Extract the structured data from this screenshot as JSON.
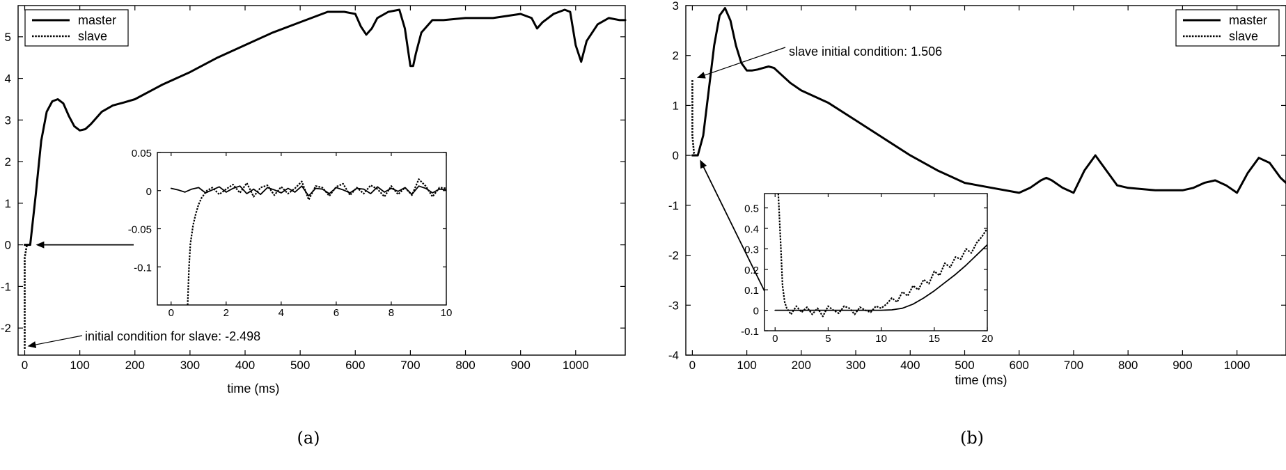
{
  "chart_data": [
    {
      "id": "a",
      "type": "line",
      "caption": "(a)",
      "xlabel": "time (ms)",
      "ylabel": "",
      "xlim": [
        -12,
        1090
      ],
      "ylim": [
        -2.65,
        5.75
      ],
      "xticks": [
        0,
        100,
        200,
        300,
        400,
        500,
        600,
        700,
        800,
        900,
        1000
      ],
      "yticks": [
        -2,
        -1,
        0,
        1,
        2,
        3,
        4,
        5
      ],
      "grid": false,
      "legend": {
        "placement": "top-left",
        "entries": [
          "master",
          "slave"
        ]
      },
      "series": [
        {
          "name": "master",
          "style": "solid",
          "x": [
            0,
            10,
            20,
            30,
            40,
            50,
            60,
            70,
            80,
            90,
            100,
            110,
            120,
            140,
            160,
            180,
            200,
            250,
            300,
            350,
            400,
            450,
            500,
            550,
            580,
            600,
            610,
            620,
            630,
            640,
            660,
            680,
            690,
            700,
            705,
            710,
            720,
            740,
            760,
            800,
            850,
            900,
            920,
            930,
            940,
            960,
            980,
            990,
            1000,
            1010,
            1020,
            1040,
            1060,
            1080,
            1090
          ],
          "y": [
            0.0,
            0.0,
            1.2,
            2.5,
            3.2,
            3.45,
            3.5,
            3.4,
            3.1,
            2.85,
            2.75,
            2.78,
            2.9,
            3.2,
            3.35,
            3.42,
            3.5,
            3.85,
            4.15,
            4.5,
            4.8,
            5.1,
            5.35,
            5.6,
            5.6,
            5.55,
            5.25,
            5.05,
            5.2,
            5.45,
            5.6,
            5.65,
            5.2,
            4.3,
            4.3,
            4.6,
            5.1,
            5.4,
            5.4,
            5.45,
            5.45,
            5.55,
            5.45,
            5.2,
            5.35,
            5.55,
            5.65,
            5.6,
            4.8,
            4.4,
            4.9,
            5.3,
            5.45,
            5.4,
            5.4
          ]
        },
        {
          "name": "slave",
          "style": "dotted",
          "x": [
            0,
            0,
            4,
            10
          ],
          "y": [
            -2.498,
            -0.3,
            0.0,
            0.0
          ]
        }
      ],
      "annotations": [
        {
          "text": "initial condition for slave: -2.498",
          "target": {
            "x": 0,
            "y": -2.498
          }
        },
        {
          "text": "",
          "target": {
            "x": 10,
            "y": 0.0
          }
        }
      ],
      "inset": {
        "xlim": [
          -0.5,
          10
        ],
        "ylim": [
          -0.15,
          0.05
        ],
        "xticks": [
          0,
          2,
          4,
          6,
          8,
          10
        ],
        "yticks": [
          0.05,
          0,
          -0.05,
          -0.1
        ],
        "ytick_labels": [
          "0.05",
          "0",
          "-0.05",
          "-0.1"
        ],
        "series": [
          {
            "name": "master",
            "style": "solid",
            "x": [
              0,
              0.25,
              0.5,
              0.75,
              1.0,
              1.25,
              1.5,
              1.75,
              2.0,
              2.25,
              2.5,
              2.75,
              3.0,
              3.25,
              3.5,
              3.75,
              4.0,
              4.25,
              4.5,
              4.75,
              5.0,
              5.25,
              5.5,
              5.75,
              6.0,
              6.25,
              6.5,
              6.75,
              7.0,
              7.25,
              7.5,
              7.75,
              8.0,
              8.25,
              8.5,
              8.75,
              9.0,
              9.25,
              9.5,
              9.75,
              10.0
            ],
            "y": [
              0.003,
              0.001,
              -0.002,
              0.002,
              0.004,
              -0.003,
              0.001,
              0.005,
              -0.002,
              0.003,
              0.006,
              -0.004,
              0.002,
              -0.005,
              0.004,
              0.001,
              -0.003,
              0.003,
              -0.002,
              0.006,
              -0.007,
              0.003,
              0.002,
              -0.004,
              0.004,
              0.001,
              -0.003,
              0.003,
              0.002,
              -0.004,
              0.005,
              -0.002,
              0.003,
              -0.001,
              0.004,
              -0.005,
              0.006,
              0.003,
              -0.003,
              0.002,
              0.001
            ]
          },
          {
            "name": "slave",
            "style": "dotted",
            "x": [
              0.6,
              0.65,
              0.7,
              0.8,
              0.9,
              1.0,
              1.1,
              1.2,
              1.3,
              1.5,
              1.75,
              2.0,
              2.25,
              2.5,
              2.75,
              3.0,
              3.25,
              3.5,
              3.75,
              4.0,
              4.25,
              4.5,
              4.75,
              5.0,
              5.25,
              5.5,
              5.75,
              6.0,
              6.25,
              6.5,
              6.75,
              7.0,
              7.25,
              7.5,
              7.75,
              8.0,
              8.25,
              8.5,
              8.75,
              9.0,
              9.25,
              9.5,
              9.75,
              10.0
            ],
            "y": [
              -0.15,
              -0.1,
              -0.07,
              -0.045,
              -0.03,
              -0.018,
              -0.01,
              -0.005,
              0.0,
              0.004,
              -0.005,
              0.002,
              0.008,
              -0.003,
              0.01,
              -0.008,
              0.004,
              0.007,
              -0.006,
              0.005,
              -0.004,
              0.003,
              0.012,
              -0.012,
              0.006,
              0.004,
              -0.007,
              0.005,
              0.009,
              -0.006,
              0.004,
              -0.004,
              0.007,
              0.002,
              -0.008,
              0.006,
              -0.005,
              0.004,
              -0.006,
              0.015,
              0.006,
              -0.008,
              0.004,
              0.003
            ]
          }
        ]
      }
    },
    {
      "id": "b",
      "type": "line",
      "caption": "(b)",
      "xlabel": "time (ms)",
      "ylabel": "",
      "xlim": [
        -12,
        1090
      ],
      "ylim": [
        -4,
        3
      ],
      "xticks": [
        0,
        100,
        200,
        300,
        400,
        500,
        600,
        700,
        800,
        900,
        1000
      ],
      "yticks": [
        -4,
        -3,
        -2,
        -1,
        0,
        1,
        2,
        3
      ],
      "grid": false,
      "legend": {
        "placement": "top-right",
        "entries": [
          "master",
          "slave"
        ]
      },
      "series": [
        {
          "name": "master",
          "style": "solid",
          "x": [
            0,
            10,
            20,
            30,
            40,
            50,
            60,
            70,
            80,
            90,
            100,
            110,
            120,
            130,
            140,
            150,
            160,
            180,
            200,
            250,
            300,
            350,
            400,
            450,
            500,
            550,
            600,
            620,
            640,
            650,
            660,
            680,
            700,
            720,
            740,
            760,
            780,
            800,
            850,
            900,
            920,
            940,
            960,
            980,
            1000,
            1020,
            1040,
            1060,
            1080,
            1090
          ],
          "y": [
            0.0,
            0.0,
            0.4,
            1.3,
            2.2,
            2.8,
            2.95,
            2.7,
            2.2,
            1.85,
            1.7,
            1.7,
            1.72,
            1.75,
            1.78,
            1.75,
            1.65,
            1.45,
            1.3,
            1.05,
            0.7,
            0.35,
            0.0,
            -0.3,
            -0.55,
            -0.65,
            -0.75,
            -0.65,
            -0.5,
            -0.45,
            -0.5,
            -0.65,
            -0.75,
            -0.3,
            0.0,
            -0.3,
            -0.6,
            -0.65,
            -0.7,
            -0.7,
            -0.65,
            -0.55,
            -0.5,
            -0.6,
            -0.75,
            -0.35,
            -0.05,
            -0.15,
            -0.45,
            -0.55
          ]
        },
        {
          "name": "slave",
          "style": "dotted",
          "x": [
            0,
            0,
            3,
            6,
            10
          ],
          "y": [
            1.506,
            0.4,
            0.05,
            0.0,
            0.0
          ]
        }
      ],
      "annotations": [
        {
          "text": "slave initial condition: 1.506",
          "target": {
            "x": 3,
            "y": 1.506
          }
        },
        {
          "text": "",
          "target": {
            "x": 10,
            "y": 0.0
          }
        }
      ],
      "inset": {
        "xlim": [
          -1,
          20
        ],
        "ylim": [
          -0.1,
          0.57
        ],
        "xticks": [
          0,
          5,
          10,
          15,
          20
        ],
        "yticks": [
          -0.1,
          0,
          0.1,
          0.2,
          0.3,
          0.4,
          0.5
        ],
        "ytick_labels": [
          "-0.1",
          "0",
          "0.1",
          "0.2",
          "0.3",
          "0.4",
          "0.5"
        ],
        "series": [
          {
            "name": "master",
            "style": "solid",
            "x": [
              0,
              2,
              4,
              6,
              8,
              10,
              11,
              12,
              13,
              14,
              15,
              16,
              17,
              18,
              19,
              20
            ],
            "y": [
              0.0,
              0.0,
              0.0,
              0.0,
              0.0,
              0.0,
              0.002,
              0.01,
              0.03,
              0.06,
              0.095,
              0.135,
              0.175,
              0.22,
              0.27,
              0.32
            ]
          },
          {
            "name": "slave",
            "style": "dotted",
            "x": [
              0.3,
              0.5,
              0.7,
              0.9,
              1.1,
              1.5,
              2,
              2.5,
              3,
              3.5,
              4,
              4.5,
              5,
              5.5,
              6,
              6.5,
              7,
              7.5,
              8,
              8.5,
              9,
              9.5,
              10,
              10.5,
              11,
              11.5,
              12,
              12.5,
              13,
              13.5,
              14,
              14.5,
              15,
              15.5,
              16,
              16.5,
              17,
              17.5,
              18,
              18.5,
              19,
              19.5,
              20
            ],
            "y": [
              0.57,
              0.35,
              0.12,
              0.04,
              0.01,
              -0.02,
              0.02,
              -0.01,
              0.015,
              -0.02,
              0.01,
              -0.03,
              0.02,
              0.0,
              -0.015,
              0.02,
              0.01,
              -0.02,
              0.015,
              0.0,
              -0.01,
              0.02,
              0.01,
              0.03,
              0.06,
              0.04,
              0.09,
              0.07,
              0.12,
              0.1,
              0.15,
              0.13,
              0.19,
              0.17,
              0.23,
              0.21,
              0.26,
              0.25,
              0.3,
              0.28,
              0.33,
              0.36,
              0.4
            ]
          }
        ]
      }
    }
  ]
}
